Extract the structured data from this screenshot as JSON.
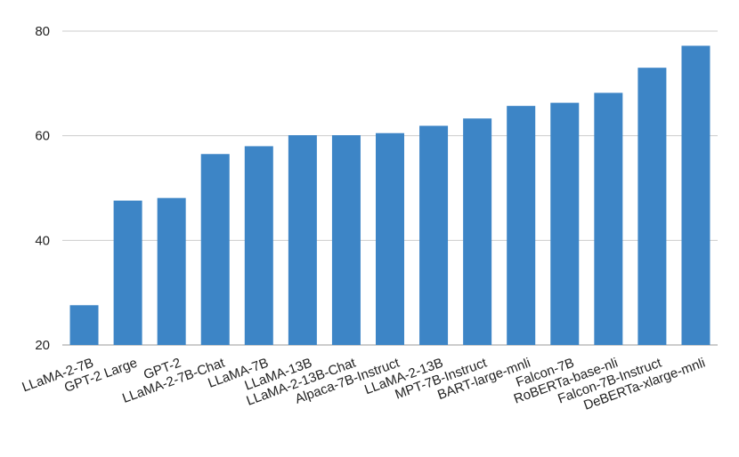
{
  "chart_data": {
    "type": "bar",
    "title": "",
    "xlabel": "",
    "ylabel": "",
    "categories": [
      "LLaMA-2-7B",
      "GPT-2 Large",
      "GPT-2",
      "LLaMA-2-7B-Chat",
      "LLaMA-7B",
      "LLaMA-13B",
      "LLaMA-2-13B-Chat",
      "Alpaca-7B-Instruct",
      "LLaMA-2-13B",
      "MPT-7B-Instruct",
      "BART-large-mnli",
      "Falcon-7B",
      "RoBERTa-base-nli",
      "Falcon-7B-Instruct",
      "DeBERTa-xlarge-mnli"
    ],
    "values": [
      27.6,
      47.6,
      48.1,
      56.5,
      58.0,
      60.1,
      60.1,
      60.5,
      61.9,
      63.3,
      65.7,
      66.3,
      68.2,
      73.0,
      77.2
    ],
    "yticks": [
      20,
      40,
      60,
      80
    ],
    "ylim": [
      20,
      80
    ],
    "grid": true,
    "legend": "none",
    "bar_color": "#3d85c6",
    "grid_color": "#cccccc"
  }
}
